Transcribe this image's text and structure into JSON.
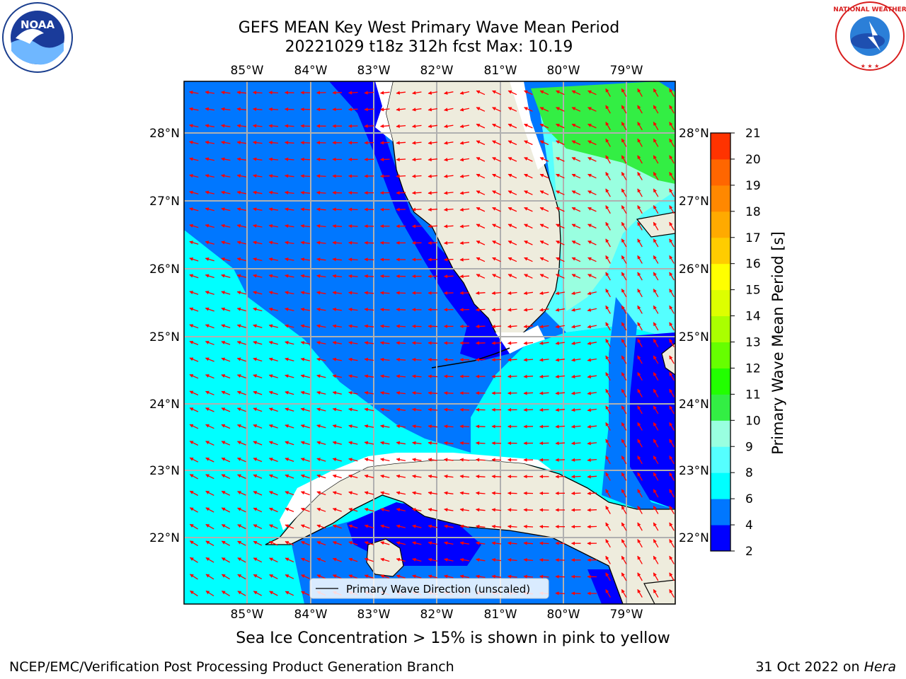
{
  "title_line1": "GEFS MEAN Key West Primary Wave Mean Period",
  "title_line2": "20221029 t18z 312h fcst   Max: 10.19",
  "colorbar": {
    "label": "Primary Wave Mean Period [s]",
    "ticks": [
      "2",
      "4",
      "6",
      "8",
      "9",
      "10",
      "11",
      "12",
      "13",
      "14",
      "15",
      "16",
      "17",
      "18",
      "19",
      "20",
      "21"
    ],
    "colors": [
      "#0000ff",
      "#0077ff",
      "#00ffff",
      "#55ffff",
      "#99ffe0",
      "#33ee44",
      "#22ff00",
      "#66ff00",
      "#aaff00",
      "#ddff00",
      "#ffff00",
      "#ffcc00",
      "#ffaa00",
      "#ff8800",
      "#ff6600",
      "#ff3300"
    ]
  },
  "lon_labels": [
    "85°W",
    "84°W",
    "83°W",
    "82°W",
    "81°W",
    "80°W",
    "79°W"
  ],
  "lat_labels": [
    "28°N",
    "27°N",
    "26°N",
    "25°N",
    "24°N",
    "23°N",
    "22°N"
  ],
  "legend_label": "Primary Wave Direction (unscaled)",
  "bottom_note": "Sea Ice Concentration > 15% is shown in pink to yellow",
  "footer_left": "NCEP/EMC/Verification Post Processing Product Generation Branch",
  "footer_date": "31 Oct 2022 on",
  "footer_machine": "Hera",
  "logos": {
    "noaa": "NOAA",
    "nws": "NATIONAL WEATHER SERVICE"
  },
  "colors": {
    "land": "#eeecdd",
    "arrow": "#ff0000",
    "grid": "#b0b0b0"
  }
}
